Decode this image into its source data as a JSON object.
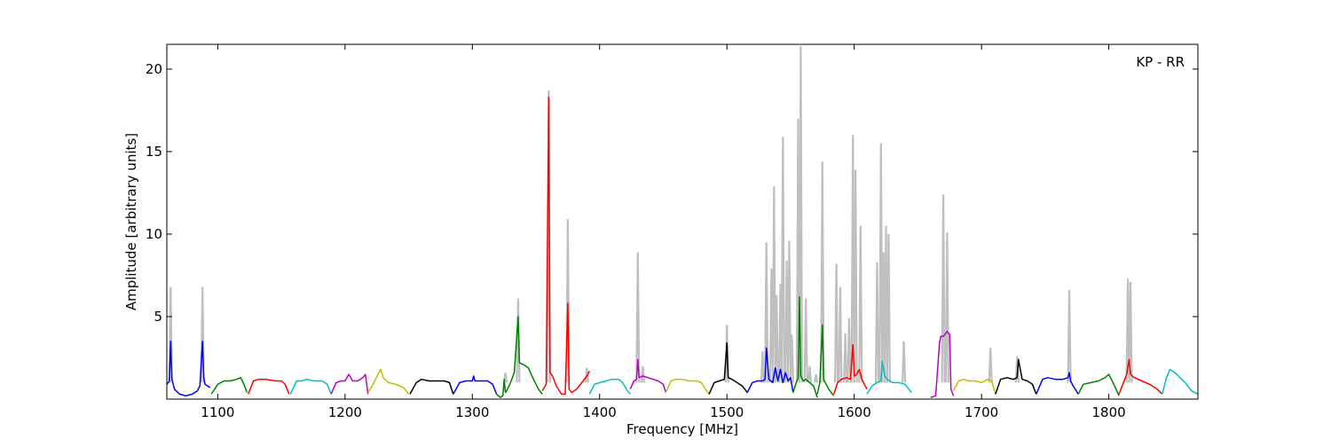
{
  "chart_data": {
    "type": "line",
    "title": "",
    "annotation": "KP - RR",
    "xlabel": "Frequency [MHz]",
    "ylabel": "Amplitude [arbitrary units]",
    "xlim": [
      1060,
      1870
    ],
    "ylim": [
      0,
      21.5
    ],
    "xticks": [
      1100,
      1200,
      1300,
      1400,
      1500,
      1600,
      1700,
      1800
    ],
    "yticks": [
      5,
      10,
      15,
      20
    ],
    "grid": false,
    "legend": "none",
    "raw_color": "#bfbfbf",
    "colors": {
      "blue": "#0000ff",
      "green": "#008000",
      "red": "#ff0000",
      "cyan": "#00bfbf",
      "magenta": "#bf00bf",
      "olive": "#bfbf00",
      "black": "#000000"
    },
    "raw_spikes": [
      [
        1063,
        6.8
      ],
      [
        1088,
        6.8
      ],
      [
        1326,
        1.6
      ],
      [
        1336,
        6.1
      ],
      [
        1360,
        18.7
      ],
      [
        1375,
        10.9
      ],
      [
        1390,
        1.9
      ],
      [
        1430,
        8.9
      ],
      [
        1434,
        2.0
      ],
      [
        1500,
        4.5
      ],
      [
        1528,
        2.9
      ],
      [
        1531,
        9.5
      ],
      [
        1535,
        7.9
      ],
      [
        1537,
        12.9
      ],
      [
        1539,
        6.3
      ],
      [
        1542,
        7.0
      ],
      [
        1544,
        15.9
      ],
      [
        1547,
        8.4
      ],
      [
        1549,
        9.6
      ],
      [
        1551,
        3.9
      ],
      [
        1556,
        17.0
      ],
      [
        1558,
        21.4
      ],
      [
        1562,
        6.1
      ],
      [
        1565,
        2.0
      ],
      [
        1570,
        1.5
      ],
      [
        1575,
        14.4
      ],
      [
        1586,
        8.2
      ],
      [
        1589,
        6.8
      ],
      [
        1593,
        4.0
      ],
      [
        1596,
        4.9
      ],
      [
        1599,
        16.0
      ],
      [
        1601,
        13.9
      ],
      [
        1605,
        10.5
      ],
      [
        1618,
        8.3
      ],
      [
        1621,
        15.5
      ],
      [
        1623,
        8.9
      ],
      [
        1625,
        10.5
      ],
      [
        1627,
        10.0
      ],
      [
        1639,
        3.5
      ],
      [
        1670,
        12.4
      ],
      [
        1673,
        10.1
      ],
      [
        1707,
        3.1
      ],
      [
        1728,
        2.6
      ],
      [
        1769,
        6.6
      ],
      [
        1815,
        7.3
      ],
      [
        1817,
        7.1
      ]
    ],
    "series": [
      {
        "color": "blue",
        "x": [
          1060,
          1062,
          1063,
          1064,
          1066,
          1070,
          1075,
          1080,
          1084,
          1086,
          1088,
          1089,
          1090,
          1092,
          1094
        ],
        "y": [
          0.9,
          1.1,
          3.5,
          1.2,
          0.6,
          0.3,
          0.2,
          0.3,
          0.5,
          0.8,
          3.5,
          1.3,
          0.9,
          0.8,
          0.7
        ]
      },
      {
        "color": "green",
        "x": [
          1095,
          1100,
          1105,
          1110,
          1115,
          1118,
          1120,
          1123
        ],
        "y": [
          0.3,
          0.9,
          1.1,
          1.1,
          1.2,
          1.3,
          1.0,
          0.4
        ]
      },
      {
        "color": "red",
        "x": [
          1124,
          1128,
          1132,
          1138,
          1145,
          1150,
          1153,
          1156
        ],
        "y": [
          0.3,
          1.1,
          1.2,
          1.2,
          1.1,
          1.1,
          0.9,
          0.3
        ]
      },
      {
        "color": "cyan",
        "x": [
          1157,
          1162,
          1166,
          1170,
          1176,
          1182,
          1186,
          1189
        ],
        "y": [
          0.3,
          1.1,
          1.1,
          1.2,
          1.1,
          1.1,
          0.9,
          0.3
        ]
      },
      {
        "color": "magenta",
        "x": [
          1189,
          1193,
          1197,
          1200,
          1203,
          1206,
          1210,
          1214,
          1216,
          1218
        ],
        "y": [
          0.3,
          1.0,
          1.1,
          1.1,
          1.5,
          1.1,
          1.1,
          1.3,
          1.5,
          0.3
        ]
      },
      {
        "color": "olive",
        "x": [
          1218,
          1222,
          1226,
          1228,
          1230,
          1234,
          1240,
          1246,
          1250
        ],
        "y": [
          0.4,
          0.9,
          1.5,
          1.8,
          1.3,
          1.0,
          0.9,
          0.7,
          0.3
        ]
      },
      {
        "color": "black",
        "x": [
          1251,
          1256,
          1260,
          1266,
          1272,
          1278,
          1282,
          1285
        ],
        "y": [
          0.3,
          1.0,
          1.2,
          1.1,
          1.1,
          1.1,
          1.0,
          0.3
        ]
      },
      {
        "color": "blue",
        "x": [
          1285,
          1290,
          1295,
          1300,
          1301,
          1302,
          1306,
          1312,
          1316,
          1319
        ],
        "y": [
          0.3,
          1.0,
          1.1,
          1.1,
          1.4,
          1.1,
          1.1,
          1.1,
          0.9,
          0.3
        ]
      },
      {
        "color": "green",
        "x": [
          1319,
          1322,
          1324,
          1325,
          1326,
          1327,
          1330,
          1333,
          1336,
          1337,
          1340,
          1344,
          1348,
          1352,
          1355
        ],
        "y": [
          0.3,
          0.1,
          0.2,
          1.2,
          0.4,
          0.5,
          1.0,
          1.6,
          5.0,
          2.2,
          2.1,
          1.9,
          1.2,
          0.6,
          0.3
        ]
      },
      {
        "color": "red",
        "x": [
          1355,
          1358,
          1360,
          1361,
          1363,
          1366,
          1370,
          1373,
          1375,
          1376,
          1378,
          1382,
          1386,
          1390,
          1392
        ],
        "y": [
          0.5,
          0.9,
          18.3,
          1.6,
          1.4,
          0.8,
          0.3,
          0.3,
          5.8,
          0.6,
          0.4,
          0.6,
          1.0,
          1.4,
          1.7
        ]
      },
      {
        "color": "cyan",
        "x": [
          1392,
          1396,
          1400,
          1405,
          1410,
          1415,
          1418,
          1421,
          1424
        ],
        "y": [
          0.3,
          0.9,
          1.0,
          1.1,
          1.2,
          1.2,
          1.0,
          0.6,
          0.3
        ]
      },
      {
        "color": "magenta",
        "x": [
          1424,
          1427,
          1429,
          1430,
          1431,
          1434,
          1438,
          1442,
          1446,
          1450,
          1452
        ],
        "y": [
          0.6,
          1.1,
          1.2,
          2.4,
          1.3,
          1.4,
          1.3,
          1.2,
          1.1,
          0.9,
          0.4
        ]
      },
      {
        "color": "olive",
        "x": [
          1452,
          1456,
          1460,
          1465,
          1470,
          1476,
          1480,
          1483,
          1486
        ],
        "y": [
          0.4,
          1.1,
          1.2,
          1.2,
          1.1,
          1.1,
          1.0,
          0.6,
          0.3
        ]
      },
      {
        "color": "black",
        "x": [
          1486,
          1490,
          1494,
          1498,
          1500,
          1501,
          1504,
          1508,
          1512,
          1516
        ],
        "y": [
          0.3,
          1.0,
          1.1,
          1.2,
          3.4,
          1.3,
          1.2,
          1.0,
          0.8,
          0.4
        ]
      },
      {
        "color": "blue",
        "x": [
          1516,
          1520,
          1524,
          1528,
          1530,
          1531,
          1533,
          1536,
          1538,
          1540,
          1542,
          1544,
          1546,
          1548,
          1550,
          1552
        ],
        "y": [
          0.4,
          1.0,
          1.1,
          1.1,
          1.2,
          3.1,
          1.2,
          1.0,
          1.9,
          1.1,
          1.8,
          1.0,
          1.6,
          1.1,
          1.3,
          0.4
        ]
      },
      {
        "color": "green",
        "x": [
          1552,
          1554,
          1556,
          1557,
          1558,
          1560,
          1562,
          1565,
          1568,
          1571
        ],
        "y": [
          0.4,
          0.9,
          1.3,
          6.2,
          1.4,
          1.1,
          1.2,
          1.0,
          0.8,
          0.1
        ]
      },
      {
        "color": "green",
        "x": [
          1571,
          1573,
          1575,
          1576,
          1578,
          1580,
          1582,
          1584
        ],
        "y": [
          0.3,
          1.0,
          4.5,
          1.2,
          0.9,
          0.6,
          0.4,
          0.2
        ]
      },
      {
        "color": "red",
        "x": [
          1584,
          1587,
          1590,
          1594,
          1597,
          1599,
          1600,
          1602,
          1604,
          1606,
          1608,
          1610
        ],
        "y": [
          0.3,
          1.0,
          1.2,
          1.3,
          1.2,
          3.3,
          1.4,
          1.5,
          1.8,
          1.2,
          0.9,
          0.6
        ]
      },
      {
        "color": "cyan",
        "x": [
          1610,
          1614,
          1618,
          1621,
          1622,
          1624,
          1626,
          1630,
          1635,
          1640,
          1645
        ],
        "y": [
          0.3,
          0.8,
          1.0,
          1.1,
          2.3,
          1.4,
          1.2,
          1.0,
          1.0,
          0.9,
          0.4
        ]
      },
      {
        "color": "magenta",
        "x": [
          1660,
          1664,
          1667,
          1668,
          1670,
          1672,
          1673,
          1675,
          1676,
          1678
        ],
        "y": [
          0.1,
          0.2,
          3.4,
          3.8,
          3.8,
          4.0,
          4.1,
          3.9,
          0.6,
          0.2
        ]
      },
      {
        "color": "olive",
        "x": [
          1678,
          1682,
          1686,
          1690,
          1695,
          1700,
          1705,
          1708,
          1711
        ],
        "y": [
          0.5,
          1.1,
          1.2,
          1.1,
          1.1,
          1.0,
          1.2,
          1.1,
          0.3
        ]
      },
      {
        "color": "black",
        "x": [
          1711,
          1715,
          1720,
          1725,
          1728,
          1729,
          1732,
          1736,
          1740,
          1743
        ],
        "y": [
          0.3,
          1.2,
          1.3,
          1.2,
          1.3,
          2.4,
          1.2,
          1.1,
          0.9,
          0.3
        ]
      },
      {
        "color": "blue",
        "x": [
          1743,
          1748,
          1752,
          1758,
          1764,
          1768,
          1769,
          1770,
          1772,
          1776
        ],
        "y": [
          0.3,
          1.2,
          1.3,
          1.2,
          1.2,
          1.3,
          1.6,
          1.1,
          0.8,
          0.3
        ]
      },
      {
        "color": "green",
        "x": [
          1776,
          1780,
          1786,
          1792,
          1797,
          1800,
          1804,
          1808
        ],
        "y": [
          0.3,
          0.9,
          1.0,
          1.1,
          1.3,
          1.5,
          0.9,
          0.2
        ]
      },
      {
        "color": "red",
        "x": [
          1808,
          1811,
          1814,
          1816,
          1817,
          1820,
          1826,
          1832,
          1838,
          1842
        ],
        "y": [
          0.3,
          0.9,
          1.5,
          2.4,
          1.5,
          1.3,
          1.1,
          0.9,
          0.6,
          0.3
        ]
      },
      {
        "color": "cyan",
        "x": [
          1842,
          1845,
          1848,
          1852,
          1856,
          1860,
          1865,
          1870
        ],
        "y": [
          0.3,
          1.2,
          1.8,
          1.6,
          1.3,
          1.0,
          0.5,
          0.3
        ]
      }
    ]
  }
}
